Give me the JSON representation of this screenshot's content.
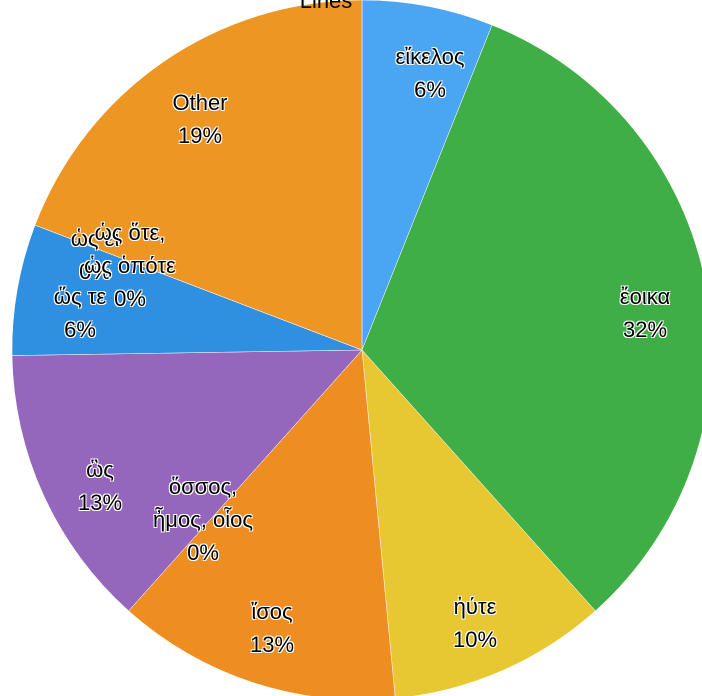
{
  "chart_data": {
    "type": "pie",
    "title": "Lines",
    "categories": [
      "εἴκελος",
      "ἔοικα",
      "ἠύτε",
      "ἴσος",
      "ὅσσος, ἦμος, οἷος",
      "ὣς",
      "ὥς τε",
      "ὡς εἰ",
      "ὡς ὅτε, ὡς ὁπότε",
      "Other"
    ],
    "values": [
      6,
      32,
      10,
      13,
      0,
      13,
      6,
      0,
      0,
      19
    ],
    "value_labels": [
      "6%",
      "32%",
      "10%",
      "13%",
      "0%",
      "13%",
      "6%",
      "0%",
      "0%",
      "19%"
    ],
    "colors": [
      "#4aa6f2",
      "#3fae46",
      "#e8c832",
      "#ee8e22",
      "#f0a030",
      "#9466bc",
      "#2f8fe0",
      "#3a9ae8",
      "#e8922a",
      "#ee9624"
    ]
  }
}
